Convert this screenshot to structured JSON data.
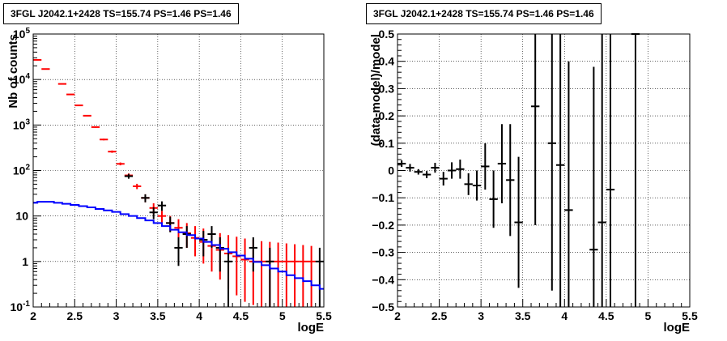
{
  "chart_data": [
    {
      "type": "scatter",
      "title": "3FGL J2042.1+2428 TS=155.74 PS=1.46 PS=1.46",
      "xlabel": "logE",
      "ylabel": "Nb of counts",
      "xlim": [
        2,
        5.5
      ],
      "ylim": [
        0.1,
        100000
      ],
      "yscale": "log",
      "grid": true,
      "xticks": [
        "2",
        "2.5",
        "3",
        "3.5",
        "4",
        "4.5",
        "5",
        "5.5"
      ],
      "yticks": [
        {
          "v": 0.1,
          "base": "10",
          "exp": "-1"
        },
        {
          "v": 1,
          "base": "1",
          "exp": ""
        },
        {
          "v": 10,
          "base": "10",
          "exp": ""
        },
        {
          "v": 100,
          "base": "10",
          "exp": "2"
        },
        {
          "v": 1000,
          "base": "10",
          "exp": "3"
        },
        {
          "v": 10000,
          "base": "10",
          "exp": "4"
        },
        {
          "v": 100000,
          "base": "10",
          "exp": "5"
        }
      ],
      "series": [
        {
          "color": "#ff0000",
          "style": "errorbars",
          "points": [
            {
              "x": 2.05,
              "y": 27000,
              "ylo": 26700,
              "yhi": 27300
            },
            {
              "x": 2.15,
              "y": 17000,
              "ylo": 16800,
              "yhi": 17200
            },
            {
              "x": 2.35,
              "y": 8000,
              "ylo": 7850,
              "yhi": 8150
            },
            {
              "x": 2.45,
              "y": 4700,
              "ylo": 4600,
              "yhi": 4800
            },
            {
              "x": 2.55,
              "y": 2700,
              "ylo": 2640,
              "yhi": 2760
            },
            {
              "x": 2.65,
              "y": 1600,
              "ylo": 1560,
              "yhi": 1640
            },
            {
              "x": 2.75,
              "y": 900,
              "ylo": 870,
              "yhi": 930
            },
            {
              "x": 2.85,
              "y": 480,
              "ylo": 460,
              "yhi": 500
            },
            {
              "x": 2.95,
              "y": 260,
              "ylo": 245,
              "yhi": 275
            },
            {
              "x": 3.05,
              "y": 140,
              "ylo": 130,
              "yhi": 150
            },
            {
              "x": 3.15,
              "y": 78,
              "ylo": 70,
              "yhi": 86
            },
            {
              "x": 3.25,
              "y": 45,
              "ylo": 39,
              "yhi": 51
            },
            {
              "x": 3.35,
              "y": 25,
              "ylo": 20,
              "yhi": 30
            },
            {
              "x": 3.45,
              "y": 15,
              "ylo": 11,
              "yhi": 19
            },
            {
              "x": 3.55,
              "y": 10,
              "ylo": 7,
              "yhi": 13
            },
            {
              "x": 3.65,
              "y": 7,
              "ylo": 4.5,
              "yhi": 10
            },
            {
              "x": 3.75,
              "y": 5.5,
              "ylo": 3,
              "yhi": 8.5
            },
            {
              "x": 3.85,
              "y": 4.2,
              "ylo": 2,
              "yhi": 7
            },
            {
              "x": 3.95,
              "y": 3.3,
              "ylo": 1.3,
              "yhi": 6
            },
            {
              "x": 4.05,
              "y": 2.7,
              "ylo": 0.9,
              "yhi": 5.3
            },
            {
              "x": 4.15,
              "y": 2.2,
              "ylo": 0.6,
              "yhi": 4.7
            },
            {
              "x": 4.25,
              "y": 1.8,
              "ylo": 0.4,
              "yhi": 4.2
            },
            {
              "x": 4.35,
              "y": 1.5,
              "ylo": 0.25,
              "yhi": 3.8
            },
            {
              "x": 4.45,
              "y": 1.3,
              "ylo": 0.18,
              "yhi": 3.5
            },
            {
              "x": 4.55,
              "y": 1.1,
              "ylo": 0.13,
              "yhi": 3.2
            },
            {
              "x": 4.65,
              "y": 1.0,
              "ylo": 0.11,
              "yhi": 3.0
            },
            {
              "x": 4.75,
              "y": 1.0,
              "ylo": 0.1,
              "yhi": 2.8
            },
            {
              "x": 4.85,
              "y": 1.0,
              "ylo": 0.1,
              "yhi": 2.7
            },
            {
              "x": 4.95,
              "y": 1.0,
              "ylo": 0.1,
              "yhi": 2.6
            },
            {
              "x": 5.05,
              "y": 1.0,
              "ylo": 0.1,
              "yhi": 2.5
            },
            {
              "x": 5.15,
              "y": 1.0,
              "ylo": 0.1,
              "yhi": 2.4
            },
            {
              "x": 5.25,
              "y": 1.0,
              "ylo": 0.1,
              "yhi": 2.3
            },
            {
              "x": 5.35,
              "y": 1.0,
              "ylo": 0.1,
              "yhi": 2.2
            }
          ]
        },
        {
          "color": "#000000",
          "style": "errorbars",
          "points": [
            {
              "x": 3.15,
              "y": 75,
              "ylo": 66,
              "yhi": 84
            },
            {
              "x": 3.35,
              "y": 25,
              "ylo": 20,
              "yhi": 30
            },
            {
              "x": 3.45,
              "y": 12,
              "ylo": 8.5,
              "yhi": 15.5
            },
            {
              "x": 3.55,
              "y": 17,
              "ylo": 13,
              "yhi": 21
            },
            {
              "x": 3.65,
              "y": 7,
              "ylo": 4.4,
              "yhi": 9.6
            },
            {
              "x": 3.75,
              "y": 2,
              "ylo": 0.8,
              "yhi": 3.4
            },
            {
              "x": 3.85,
              "y": 4,
              "ylo": 2,
              "yhi": 6
            },
            {
              "x": 4.05,
              "y": 3,
              "ylo": 1.3,
              "yhi": 4.7
            },
            {
              "x": 4.15,
              "y": 4,
              "ylo": 2,
              "yhi": 6
            },
            {
              "x": 4.25,
              "y": 2,
              "ylo": 0.6,
              "yhi": 3.4
            },
            {
              "x": 4.35,
              "y": 1,
              "ylo": 0.1,
              "yhi": 2
            },
            {
              "x": 4.65,
              "y": 2,
              "ylo": 0.6,
              "yhi": 3.4
            },
            {
              "x": 4.85,
              "y": 1,
              "ylo": 0.1,
              "yhi": 2
            },
            {
              "x": 5.45,
              "y": 1,
              "ylo": 0.1,
              "yhi": 2
            }
          ]
        },
        {
          "color": "#0000ff",
          "style": "step",
          "x": [
            2.0,
            2.05,
            2.15,
            2.25,
            2.35,
            2.45,
            2.55,
            2.65,
            2.75,
            2.85,
            2.95,
            3.05,
            3.15,
            3.25,
            3.35,
            3.45,
            3.55,
            3.65,
            3.75,
            3.85,
            3.95,
            4.05,
            4.15,
            4.25,
            4.35,
            4.45,
            4.55,
            4.65,
            4.75,
            4.85,
            4.95,
            5.05,
            5.15,
            5.25,
            5.35,
            5.45
          ],
          "values": [
            19.5,
            20.5,
            20.5,
            19.5,
            18.5,
            17.5,
            16.5,
            15.5,
            14.3,
            13.3,
            12.3,
            11.0,
            10.0,
            9.0,
            8.0,
            7.0,
            6.0,
            5.0,
            4.4,
            3.8,
            3.2,
            2.7,
            2.3,
            1.9,
            1.6,
            1.35,
            1.15,
            0.98,
            0.83,
            0.7,
            0.6,
            0.5,
            0.43,
            0.37,
            0.3,
            0.25
          ]
        }
      ]
    },
    {
      "type": "scatter",
      "title": "3FGL J2042.1+2428 TS=155.74 PS=1.46 PS=1.46",
      "xlabel": "logE",
      "ylabel": "(data-model)/model",
      "xlim": [
        2,
        5.5
      ],
      "ylim": [
        -0.5,
        0.5
      ],
      "grid": true,
      "xticks": [
        "2",
        "2.5",
        "3",
        "3.5",
        "4",
        "4.5",
        "5",
        "5.5"
      ],
      "yticks": [
        "−0.5",
        "−0.4",
        "−0.3",
        "−0.2",
        "−0.1",
        "0",
        "0.1",
        "0.2",
        "0.3",
        "0.4",
        "0.5"
      ],
      "series": [
        {
          "color": "#000000",
          "style": "errorbars",
          "points": [
            {
              "x": 2.05,
              "y": 0.025,
              "ylo": 0.013,
              "yhi": 0.037
            },
            {
              "x": 2.15,
              "y": 0.01,
              "ylo": -0.004,
              "yhi": 0.024
            },
            {
              "x": 2.25,
              "y": -0.005,
              "ylo": -0.015,
              "yhi": 0.005
            },
            {
              "x": 2.35,
              "y": -0.015,
              "ylo": -0.028,
              "yhi": -0.002
            },
            {
              "x": 2.45,
              "y": 0.01,
              "ylo": -0.008,
              "yhi": 0.028
            },
            {
              "x": 2.55,
              "y": -0.03,
              "ylo": -0.055,
              "yhi": -0.005
            },
            {
              "x": 2.65,
              "y": 0.0,
              "ylo": -0.03,
              "yhi": 0.03
            },
            {
              "x": 2.75,
              "y": 0.005,
              "ylo": -0.03,
              "yhi": 0.04
            },
            {
              "x": 2.85,
              "y": -0.05,
              "ylo": -0.09,
              "yhi": -0.01
            },
            {
              "x": 2.95,
              "y": -0.055,
              "ylo": -0.11,
              "yhi": 0.0
            },
            {
              "x": 3.05,
              "y": 0.015,
              "ylo": -0.07,
              "yhi": 0.1
            },
            {
              "x": 3.15,
              "y": -0.105,
              "ylo": -0.21,
              "yhi": 0.0
            },
            {
              "x": 3.25,
              "y": 0.025,
              "ylo": -0.12,
              "yhi": 0.17
            },
            {
              "x": 3.35,
              "y": -0.035,
              "ylo": -0.24,
              "yhi": 0.17
            },
            {
              "x": 3.45,
              "y": -0.19,
              "ylo": -0.43,
              "yhi": 0.05
            },
            {
              "x": 3.65,
              "y": 0.235,
              "ylo": -0.2,
              "yhi": 0.5
            },
            {
              "x": 3.85,
              "y": 0.1,
              "ylo": -0.44,
              "yhi": 0.5
            },
            {
              "x": 3.95,
              "y": 0.02,
              "ylo": -0.5,
              "yhi": 0.5
            },
            {
              "x": 4.05,
              "y": -0.145,
              "ylo": -0.5,
              "yhi": 0.4
            },
            {
              "x": 4.35,
              "y": -0.29,
              "ylo": -0.5,
              "yhi": 0.38
            },
            {
              "x": 4.45,
              "y": -0.19,
              "ylo": -0.5,
              "yhi": 0.5
            },
            {
              "x": 4.55,
              "y": -0.07,
              "ylo": -0.5,
              "yhi": 0.5
            },
            {
              "x": 4.85,
              "y": 0.5,
              "ylo": -0.5,
              "yhi": 0.5
            }
          ]
        }
      ]
    }
  ]
}
